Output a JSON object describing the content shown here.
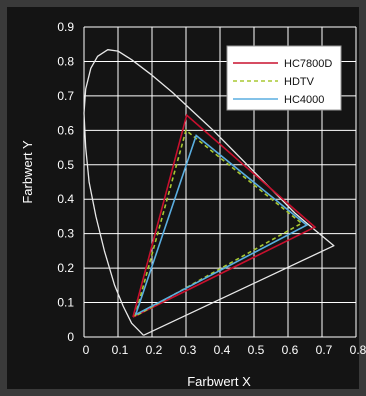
{
  "chart_data": {
    "type": "line",
    "xlabel": "Farbwert X",
    "ylabel": "Farbwert Y",
    "xlim": [
      0,
      0.8
    ],
    "ylim": [
      0,
      0.9
    ],
    "x_ticks": [
      "0",
      "0.1",
      "0.2",
      "0.3",
      "0.4",
      "0.5",
      "0.6",
      "0.7",
      "0.8"
    ],
    "y_ticks": [
      "0",
      "0.1",
      "0.2",
      "0.3",
      "0.4",
      "0.5",
      "0.6",
      "0.7",
      "0.8",
      "0.9"
    ],
    "grid": true,
    "legend_position": "top-right",
    "locus": {
      "color": "#e8e8e8",
      "points": [
        [
          0.175,
          0.005
        ],
        [
          0.16,
          0.02
        ],
        [
          0.14,
          0.04
        ],
        [
          0.115,
          0.09
        ],
        [
          0.09,
          0.15
        ],
        [
          0.06,
          0.25
        ],
        [
          0.035,
          0.35
        ],
        [
          0.015,
          0.45
        ],
        [
          0.005,
          0.55
        ],
        [
          0.0,
          0.65
        ],
        [
          0.005,
          0.72
        ],
        [
          0.02,
          0.78
        ],
        [
          0.04,
          0.815
        ],
        [
          0.07,
          0.834
        ],
        [
          0.1,
          0.83
        ],
        [
          0.14,
          0.805
        ],
        [
          0.2,
          0.76
        ],
        [
          0.26,
          0.71
        ],
        [
          0.32,
          0.655
        ],
        [
          0.38,
          0.6
        ],
        [
          0.44,
          0.54
        ],
        [
          0.5,
          0.48
        ],
        [
          0.56,
          0.42
        ],
        [
          0.62,
          0.36
        ],
        [
          0.68,
          0.31
        ],
        [
          0.735,
          0.265
        ],
        [
          0.175,
          0.005
        ]
      ]
    },
    "series": [
      {
        "name": "HC7800D",
        "color": "#c8102e",
        "dash": "",
        "points": [
          [
            0.144,
            0.058
          ],
          [
            0.302,
            0.644
          ],
          [
            0.679,
            0.319
          ],
          [
            0.144,
            0.058
          ]
        ]
      },
      {
        "name": "HDTV",
        "color": "#a8c832",
        "dash": "4,3",
        "points": [
          [
            0.15,
            0.06
          ],
          [
            0.3,
            0.6
          ],
          [
            0.64,
            0.33
          ],
          [
            0.15,
            0.06
          ]
        ]
      },
      {
        "name": "HC4000",
        "color": "#5aaee0",
        "dash": "",
        "points": [
          [
            0.152,
            0.065
          ],
          [
            0.33,
            0.585
          ],
          [
            0.655,
            0.325
          ],
          [
            0.152,
            0.065
          ]
        ]
      }
    ]
  }
}
